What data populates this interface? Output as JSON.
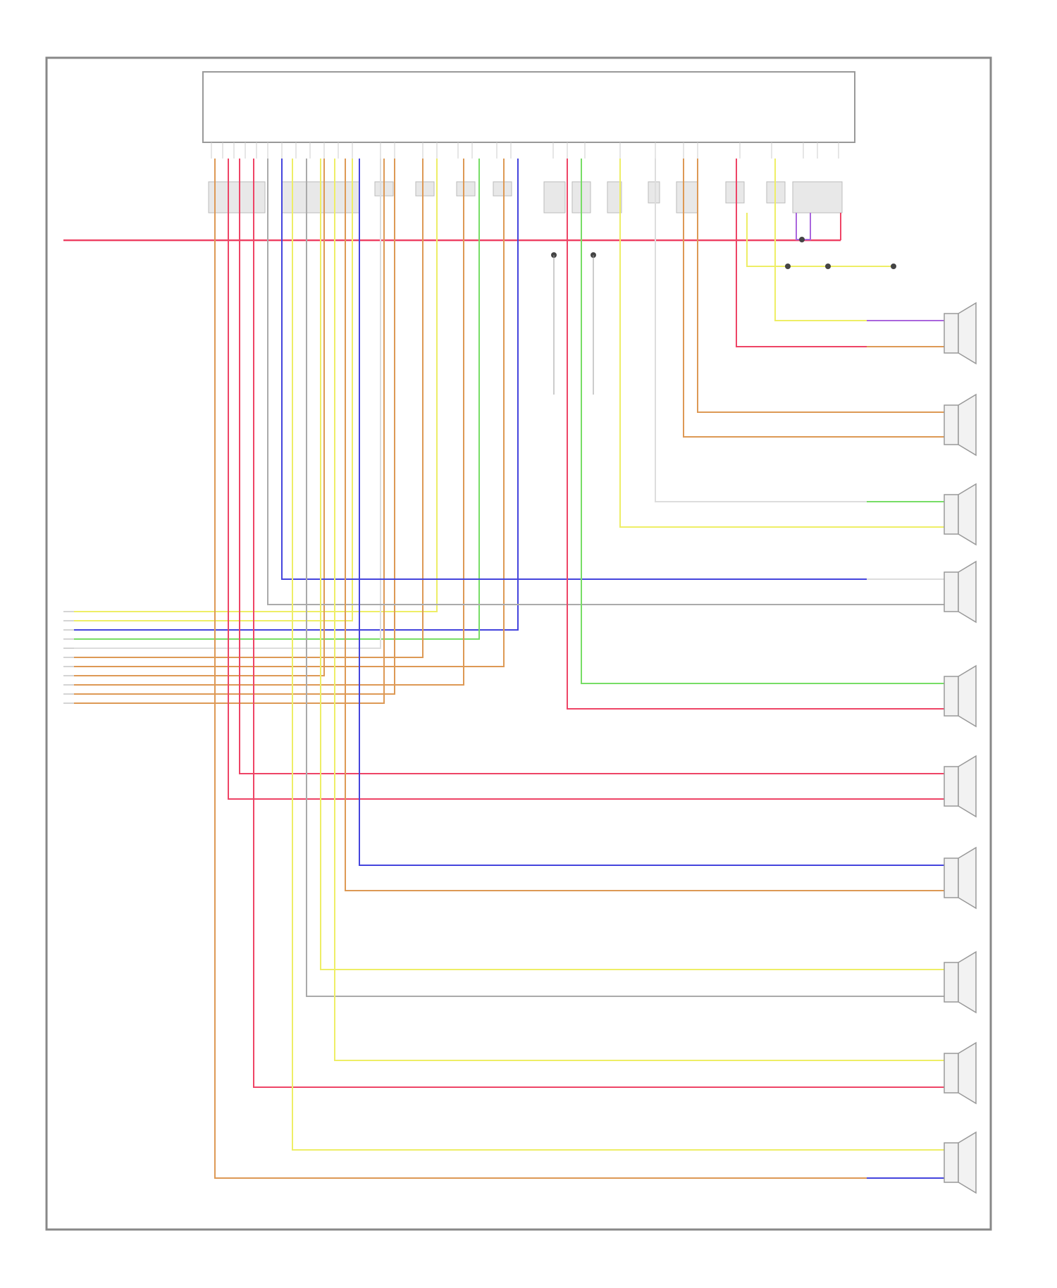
{
  "diagram": {
    "footer_label": "",
    "module_label": "",
    "colors": {
      "red": "#ee4466",
      "orange": "#dd9955",
      "yellow": "#eeee66",
      "green": "#77dd66",
      "blue": "#4444dd",
      "violet": "#aa66dd",
      "gray": "#aaaaaa",
      "white": "#dddddd",
      "frame": "#888888"
    },
    "speakers": [
      {
        "id": "speaker-1",
        "name": ""
      },
      {
        "id": "speaker-2",
        "name": ""
      },
      {
        "id": "speaker-3",
        "name": ""
      },
      {
        "id": "speaker-4",
        "name": ""
      },
      {
        "id": "speaker-5",
        "name": ""
      },
      {
        "id": "speaker-6",
        "name": ""
      },
      {
        "id": "speaker-7",
        "name": ""
      },
      {
        "id": "speaker-8",
        "name": ""
      },
      {
        "id": "speaker-9",
        "name": ""
      },
      {
        "id": "speaker-10",
        "name": ""
      },
      {
        "id": "speaker-11",
        "name": ""
      }
    ]
  }
}
